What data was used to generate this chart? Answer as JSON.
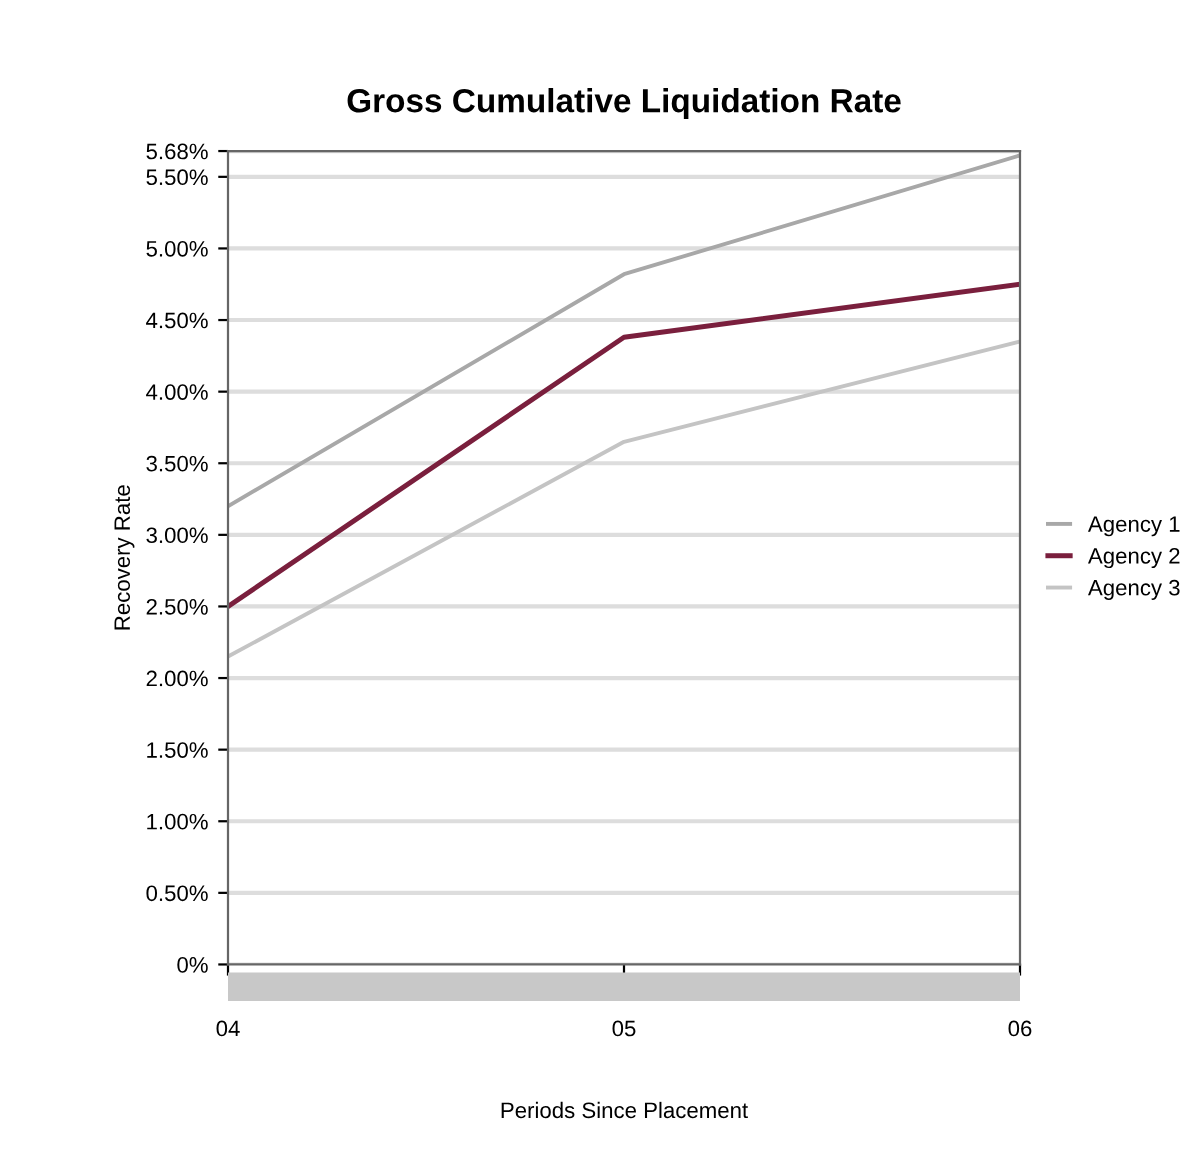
{
  "chart_data": {
    "type": "line",
    "title": "Gross Cumulative Liquidation Rate",
    "xlabel": "Periods Since Placement",
    "ylabel": "Recovery Rate",
    "categories": [
      "04",
      "05",
      "06"
    ],
    "series": [
      {
        "name": "Agency 1",
        "color": "#a8a8a8",
        "values": [
          3.2,
          4.82,
          5.65
        ]
      },
      {
        "name": "Agency 2",
        "color": "#7a1f3d",
        "values": [
          2.5,
          4.38,
          4.75
        ]
      },
      {
        "name": "Agency 3",
        "color": "#c4c4c4",
        "values": [
          2.15,
          3.65,
          4.35
        ]
      }
    ],
    "ylim": [
      0,
      5.68
    ],
    "yticks": [
      {
        "value": 0,
        "label": "0%"
      },
      {
        "value": 0.5,
        "label": "0.50%"
      },
      {
        "value": 1,
        "label": "1.00%"
      },
      {
        "value": 1.5,
        "label": "1.50%"
      },
      {
        "value": 2,
        "label": "2.00%"
      },
      {
        "value": 2.5,
        "label": "2.50%"
      },
      {
        "value": 3,
        "label": "3.00%"
      },
      {
        "value": 3.5,
        "label": "3.50%"
      },
      {
        "value": 4,
        "label": "4.00%"
      },
      {
        "value": 4.5,
        "label": "4.50%"
      },
      {
        "value": 5,
        "label": "5.00%"
      },
      {
        "value": 5.5,
        "label": "5.50%"
      },
      {
        "value": 5.68,
        "label": "5.68%"
      }
    ],
    "grid": "y",
    "legend": "right",
    "marker": "none",
    "line_style": "solid"
  }
}
